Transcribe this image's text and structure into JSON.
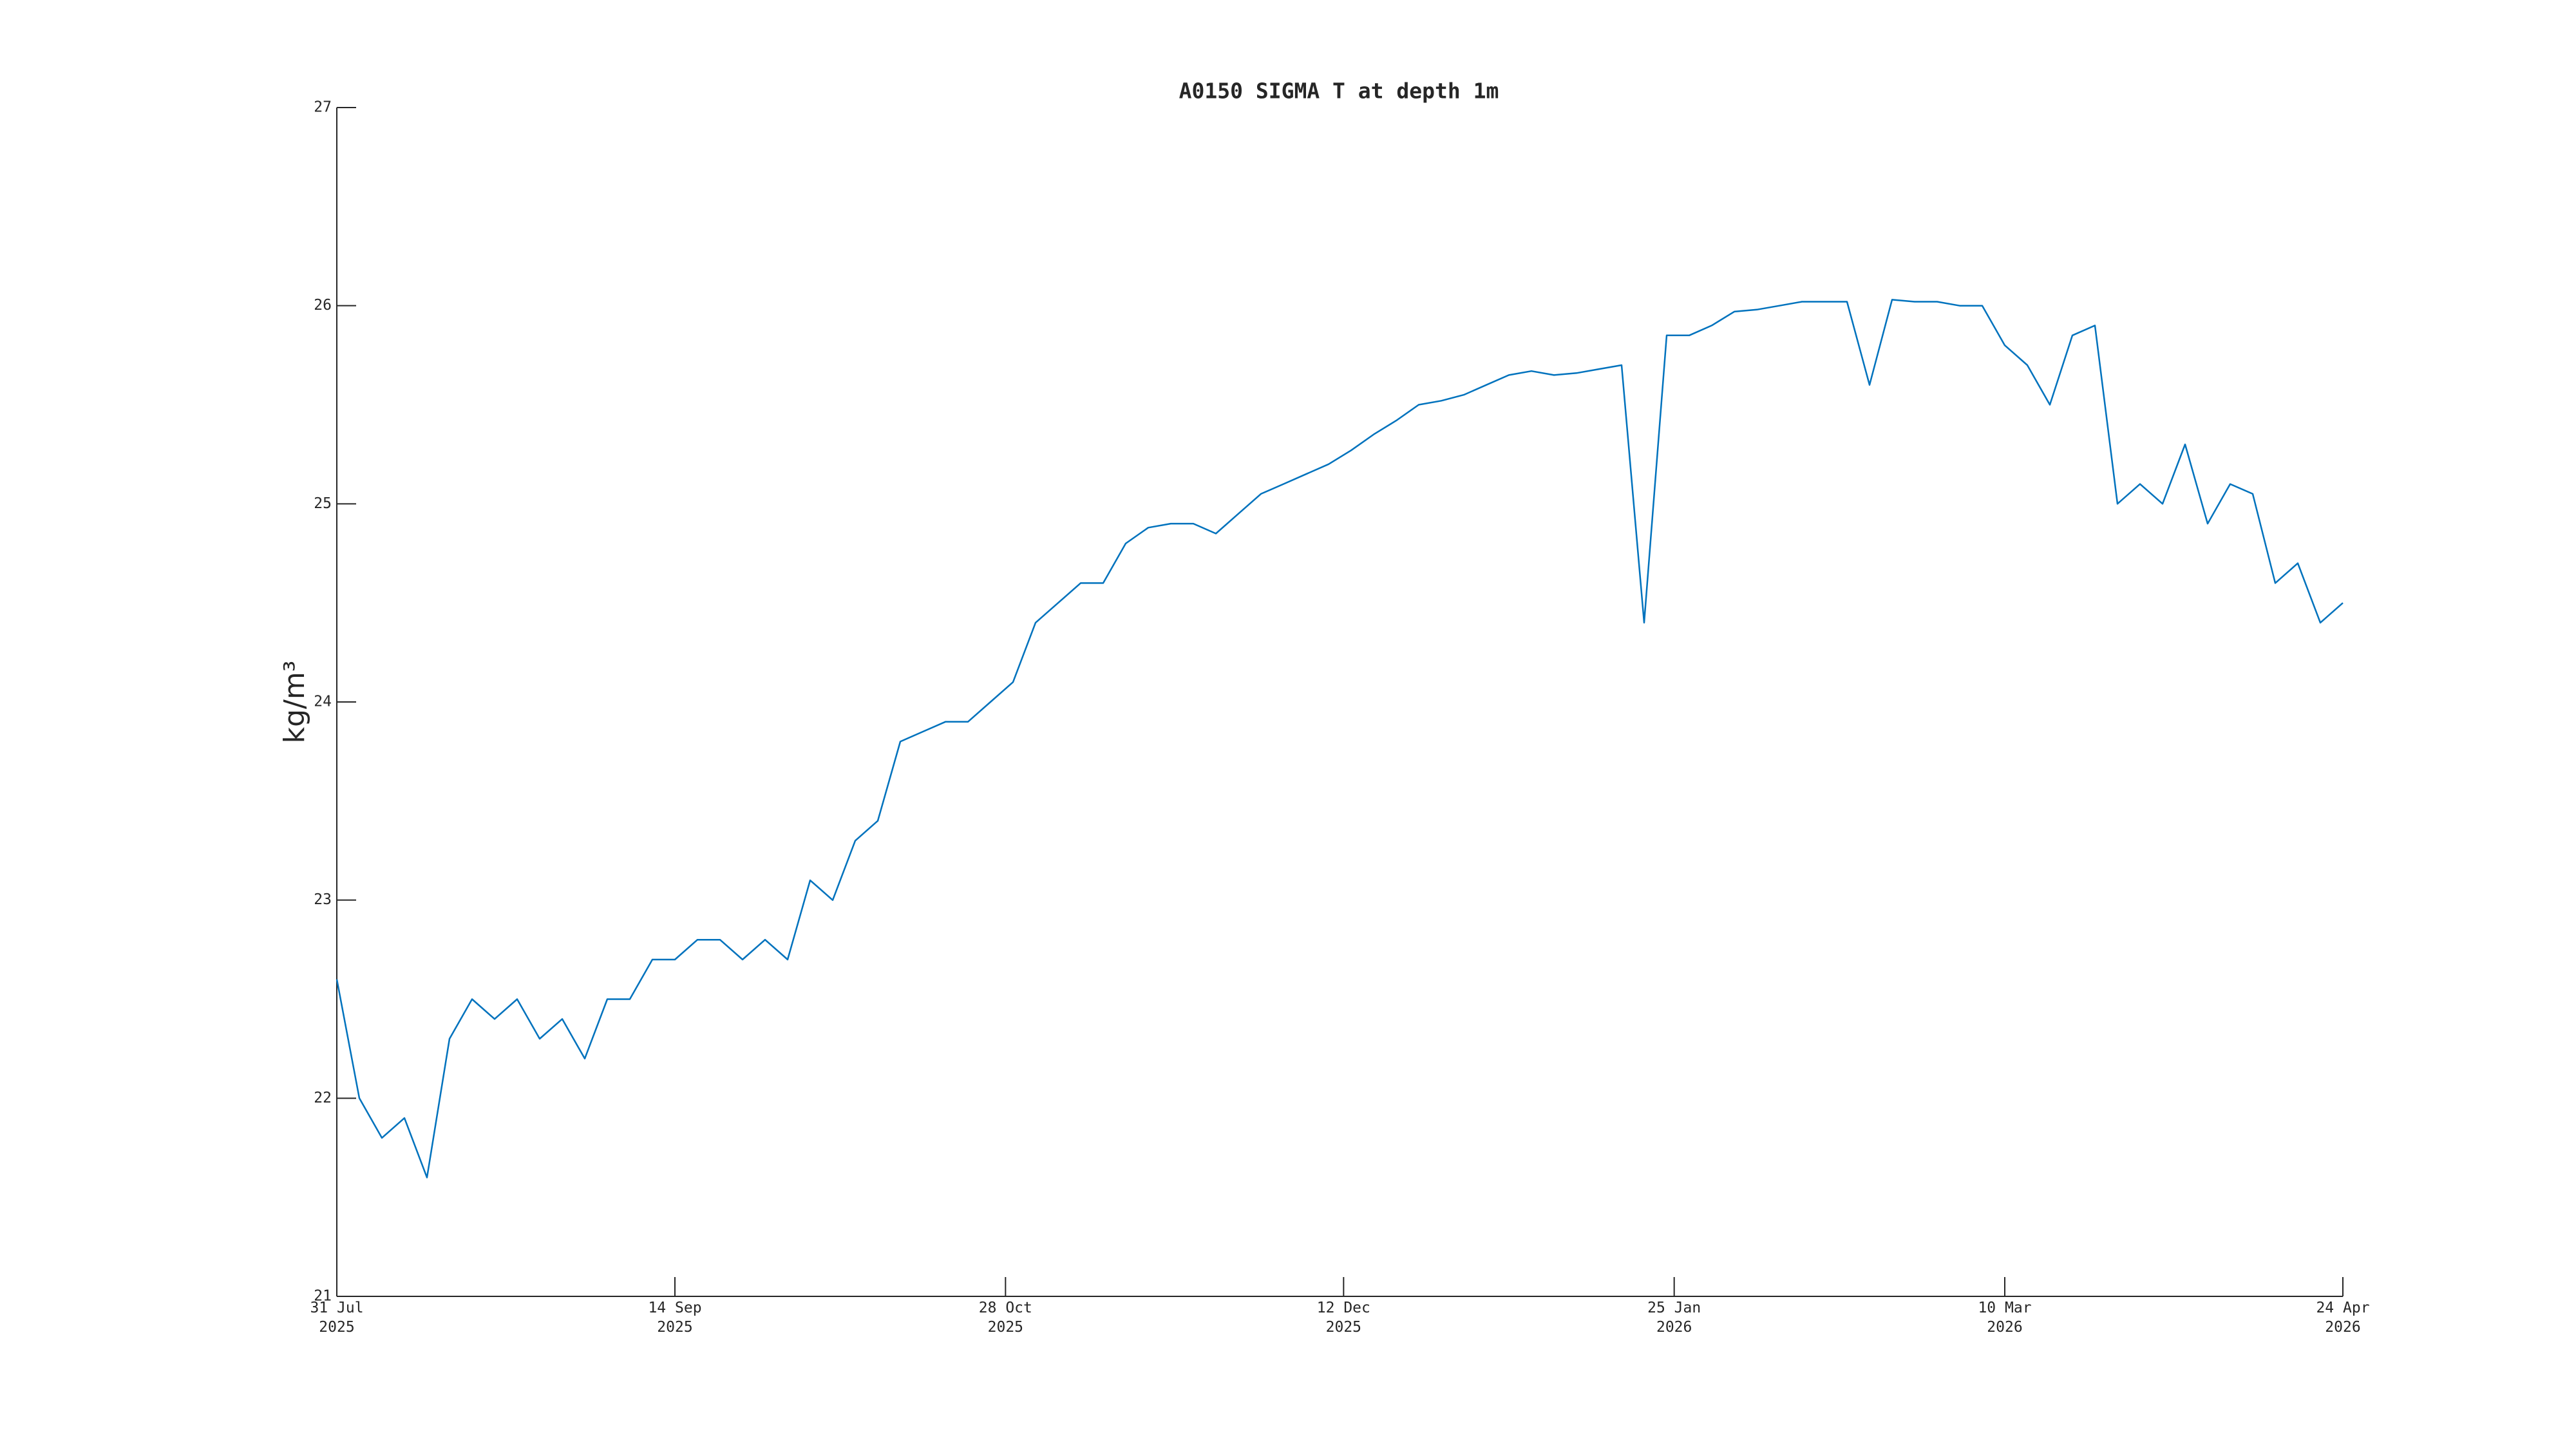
{
  "chart_data": {
    "type": "line",
    "title": "A0150 SIGMA T at depth 1m",
    "y_label": "kg/m³",
    "x": [
      "2025-07-31",
      "2025-08-03",
      "2025-08-06",
      "2025-08-09",
      "2025-08-12",
      "2025-08-15",
      "2025-08-18",
      "2025-08-21",
      "2025-08-24",
      "2025-08-27",
      "2025-08-30",
      "2025-09-02",
      "2025-09-05",
      "2025-09-08",
      "2025-09-11",
      "2025-09-14",
      "2025-09-17",
      "2025-09-20",
      "2025-09-23",
      "2025-09-26",
      "2025-09-29",
      "2025-10-02",
      "2025-10-05",
      "2025-10-08",
      "2025-10-11",
      "2025-10-14",
      "2025-10-17",
      "2025-10-20",
      "2025-10-23",
      "2025-10-26",
      "2025-10-29",
      "2025-11-01",
      "2025-11-04",
      "2025-11-07",
      "2025-11-10",
      "2025-11-13",
      "2025-11-16",
      "2025-11-19",
      "2025-11-22",
      "2025-11-25",
      "2025-11-28",
      "2025-12-01",
      "2025-12-04",
      "2025-12-07",
      "2025-12-10",
      "2025-12-13",
      "2025-12-16",
      "2025-12-19",
      "2025-12-22",
      "2025-12-25",
      "2025-12-28",
      "2025-12-31",
      "2026-01-03",
      "2026-01-06",
      "2026-01-09",
      "2026-01-12",
      "2026-01-15",
      "2026-01-18",
      "2026-01-21",
      "2026-01-24",
      "2026-01-27",
      "2026-01-30",
      "2026-02-02",
      "2026-02-05",
      "2026-02-08",
      "2026-02-11",
      "2026-02-14",
      "2026-02-17",
      "2026-02-20",
      "2026-02-23",
      "2026-02-26",
      "2026-03-01",
      "2026-03-04",
      "2026-03-07",
      "2026-03-10",
      "2026-03-13",
      "2026-03-16",
      "2026-03-19",
      "2026-03-22",
      "2026-03-25",
      "2026-03-28",
      "2026-03-31",
      "2026-04-03",
      "2026-04-06",
      "2026-04-09",
      "2026-04-12",
      "2026-04-15",
      "2026-04-18",
      "2026-04-21",
      "2026-04-24"
    ],
    "series": [
      {
        "name": "SIGMA T",
        "color": "#0072bd",
        "values": [
          22.6,
          22.0,
          21.8,
          21.9,
          21.6,
          22.3,
          22.5,
          22.4,
          22.5,
          22.3,
          22.4,
          22.2,
          22.5,
          22.5,
          22.7,
          22.7,
          22.8,
          22.8,
          22.7,
          22.8,
          22.7,
          23.1,
          23.0,
          23.3,
          23.4,
          23.8,
          23.85,
          23.9,
          23.9,
          24.0,
          24.1,
          24.4,
          24.5,
          24.6,
          24.6,
          24.8,
          24.88,
          24.9,
          24.9,
          24.85,
          24.95,
          25.05,
          25.1,
          25.15,
          25.2,
          25.27,
          25.35,
          25.42,
          25.5,
          25.52,
          25.55,
          25.6,
          25.65,
          25.67,
          25.65,
          25.66,
          25.68,
          25.7,
          24.4,
          25.85,
          25.85,
          25.9,
          25.97,
          25.98,
          26.0,
          26.02,
          26.02,
          26.02,
          25.6,
          26.03,
          26.02,
          26.02,
          26.0,
          26.0,
          25.8,
          25.7,
          25.5,
          25.85,
          25.9,
          25.0,
          25.1,
          25.0,
          25.3,
          24.9,
          25.1,
          25.05,
          24.6,
          24.7,
          24.4,
          24.5
        ]
      }
    ],
    "xlim": [
      "2025-07-31",
      "2026-04-24"
    ],
    "xticks": [
      {
        "value": "2025-07-31",
        "label": "31 Jul\n2025"
      },
      {
        "value": "2025-09-14",
        "label": "14 Sep\n2025"
      },
      {
        "value": "2025-10-28",
        "label": "28 Oct\n2025"
      },
      {
        "value": "2025-12-12",
        "label": "12 Dec\n2025"
      },
      {
        "value": "2026-01-25",
        "label": "25 Jan\n2026"
      },
      {
        "value": "2026-03-10",
        "label": "10 Mar\n2026"
      },
      {
        "value": "2026-04-24",
        "label": "24 Apr\n2026"
      }
    ],
    "ylim": [
      21,
      27
    ],
    "yticks": [
      21,
      22,
      23,
      24,
      25,
      26,
      27
    ],
    "grid": false
  }
}
